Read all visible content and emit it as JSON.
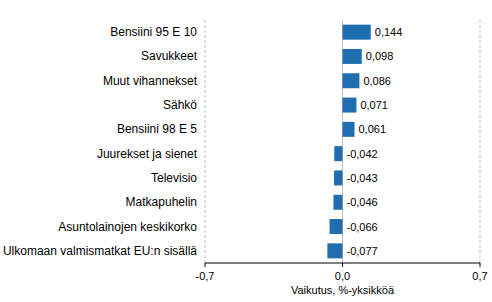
{
  "chart_data": {
    "type": "bar",
    "orientation": "horizontal",
    "x_label": "Vaikutus, %-yksikköä",
    "categories": [
      "Bensiini 95 E 10",
      "Savukkeet",
      "Muut vihannekset",
      "Sähkö",
      "Bensiini 98 E 5",
      "Juurekset ja sienet",
      "Televisio",
      "Matkapuhelin",
      "Asuntolainojen keskikorko",
      "Ulkomaan valmismatkat EU:n sisällä"
    ],
    "values": [
      0.144,
      0.098,
      0.086,
      0.071,
      0.061,
      -0.042,
      -0.043,
      -0.046,
      -0.066,
      -0.077
    ],
    "value_labels": [
      "0,144",
      "0,098",
      "0,086",
      "0,071",
      "0,061",
      "-0,042",
      "-0,043",
      "-0,046",
      "-0,066",
      "-0,077"
    ],
    "data_labels": true,
    "color": "#1f6fb0",
    "xlim": [
      -0.7,
      0.7
    ],
    "xticks": [
      {
        "value": -0.7,
        "label": "-0,7"
      },
      {
        "value": 0,
        "label": "0,0"
      },
      {
        "value": 0.7,
        "label": "0,7"
      }
    ],
    "grid": true
  }
}
